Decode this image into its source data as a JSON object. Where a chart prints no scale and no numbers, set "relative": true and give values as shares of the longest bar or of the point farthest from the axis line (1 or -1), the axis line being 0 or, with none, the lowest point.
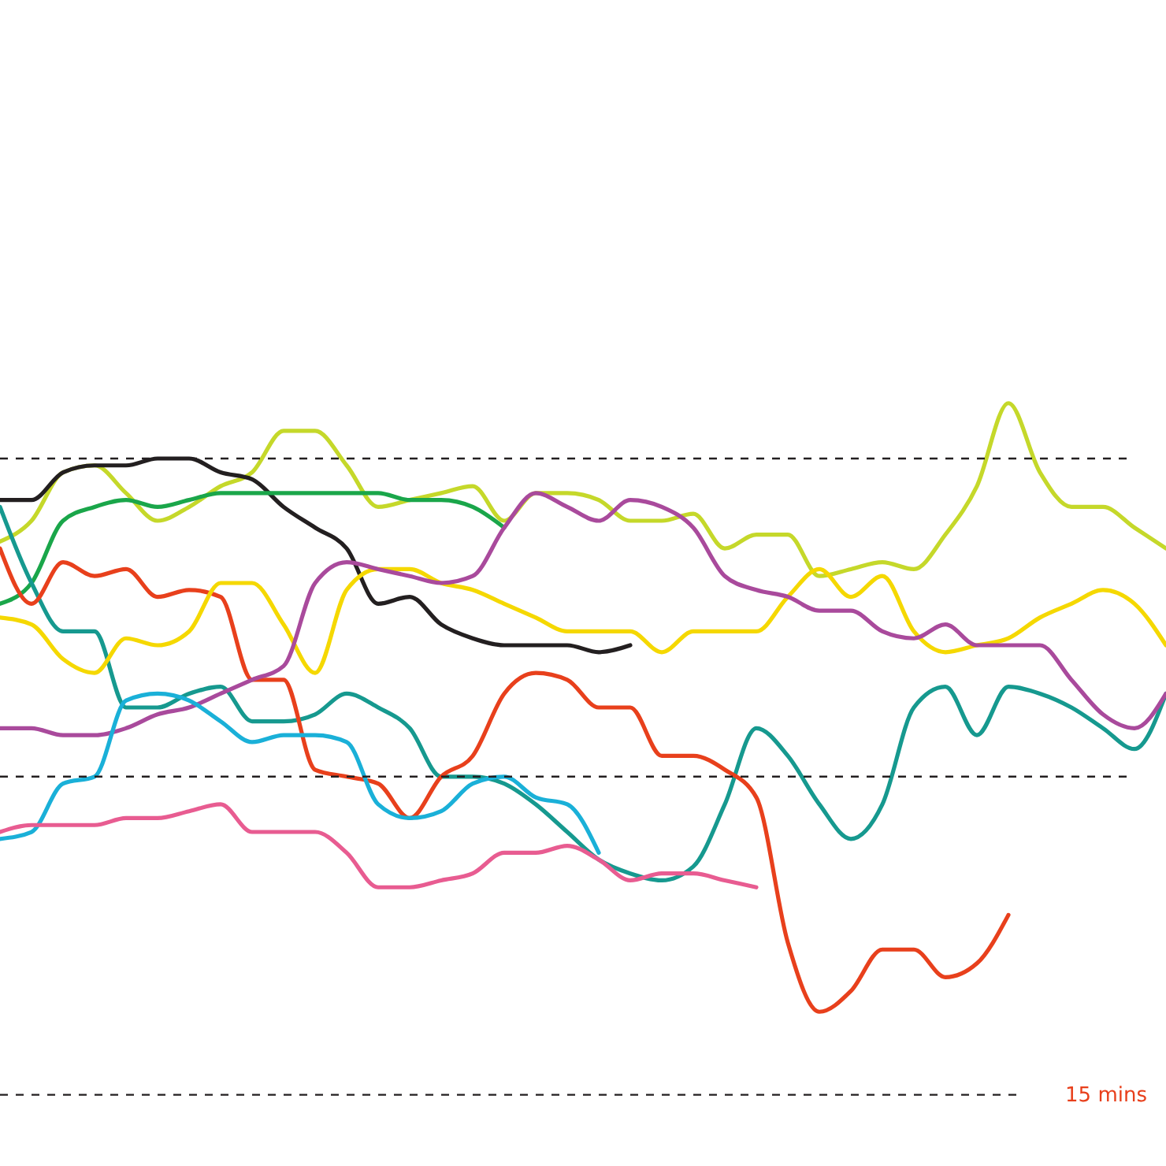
{
  "chart_data": {
    "type": "line",
    "relative": true,
    "categories": [
      null,
      null,
      null,
      null,
      null,
      null,
      null,
      null,
      null,
      null,
      null,
      null,
      null,
      null,
      null,
      null,
      null,
      null,
      null,
      null,
      null,
      null,
      null,
      null,
      null,
      null,
      null,
      null,
      null,
      null,
      null,
      null,
      null,
      null,
      null,
      null,
      null,
      null
    ],
    "series": [
      {
        "color": "#c5d82a",
        "values": [
          0.8,
          0.83,
          0.9,
          0.91,
          0.87,
          0.83,
          0.85,
          0.88,
          0.9,
          0.96,
          0.96,
          0.91,
          0.85,
          0.86,
          0.87,
          0.88,
          0.83,
          0.87,
          0.87,
          0.86,
          0.83,
          0.83,
          0.84,
          0.79,
          0.81,
          0.81,
          0.75,
          0.76,
          0.77,
          0.76,
          0.81,
          0.88,
          1.0,
          0.9,
          0.85,
          0.85,
          0.82,
          0.79
        ]
      },
      {
        "color": "#231f20",
        "values": [
          0.86,
          0.86,
          0.9,
          0.91,
          0.91,
          0.92,
          0.92,
          0.9,
          0.89,
          0.85,
          0.82,
          0.79,
          0.71,
          0.72,
          0.68,
          0.66,
          0.65,
          0.65,
          0.65,
          0.64,
          0.65,
          null,
          null,
          null,
          null,
          null,
          null,
          null,
          null,
          null,
          null,
          null,
          null,
          null,
          null,
          null,
          null,
          null
        ]
      },
      {
        "color": "#1aa64a",
        "values": [
          0.71,
          0.74,
          0.83,
          0.85,
          0.86,
          0.85,
          0.86,
          0.87,
          0.87,
          0.87,
          0.87,
          0.87,
          0.87,
          0.86,
          0.86,
          0.85,
          0.82,
          null,
          null,
          null,
          null,
          null,
          null,
          null,
          null,
          null,
          null,
          null,
          null,
          null,
          null,
          null,
          null,
          null,
          null,
          null,
          null,
          null
        ]
      },
      {
        "color": "#16998f",
        "values": [
          0.85,
          0.74,
          0.67,
          0.67,
          0.56,
          0.56,
          0.58,
          0.59,
          0.54,
          0.54,
          0.55,
          0.58,
          0.56,
          0.53,
          0.46,
          0.46,
          0.45,
          0.42,
          0.38,
          0.34,
          0.32,
          0.31,
          0.33,
          0.42,
          0.53,
          0.49,
          0.42,
          0.37,
          0.42,
          0.56,
          0.59,
          0.52,
          0.59,
          0.58,
          0.56,
          0.53,
          0.5,
          0.58
        ]
      },
      {
        "color": "#e8401c",
        "values": [
          0.79,
          0.71,
          0.77,
          0.75,
          0.76,
          0.72,
          0.73,
          0.72,
          0.6,
          0.6,
          0.47,
          0.46,
          0.45,
          0.4,
          0.46,
          0.49,
          0.58,
          0.61,
          0.6,
          0.56,
          0.56,
          0.49,
          0.49,
          0.47,
          0.43,
          0.22,
          0.12,
          0.15,
          0.21,
          0.21,
          0.17,
          0.19,
          0.26,
          null,
          null,
          null,
          null,
          null
        ]
      },
      {
        "color": "#f5d800",
        "values": [
          0.69,
          0.68,
          0.63,
          0.61,
          0.66,
          0.65,
          0.67,
          0.74,
          0.74,
          0.68,
          0.61,
          0.73,
          0.76,
          0.76,
          0.74,
          0.73,
          0.71,
          0.69,
          0.67,
          0.67,
          0.67,
          0.64,
          0.67,
          0.67,
          0.67,
          0.72,
          0.76,
          0.72,
          0.75,
          0.67,
          0.64,
          0.65,
          0.66,
          0.69,
          0.71,
          0.73,
          0.71,
          0.65
        ]
      },
      {
        "color": "#a94a9c",
        "values": [
          0.53,
          0.53,
          0.52,
          0.52,
          0.53,
          0.55,
          0.56,
          0.58,
          0.6,
          0.62,
          0.74,
          0.77,
          0.76,
          0.75,
          0.74,
          0.75,
          0.82,
          0.87,
          0.85,
          0.83,
          0.86,
          0.85,
          0.82,
          0.75,
          0.73,
          0.72,
          0.7,
          0.7,
          0.67,
          0.66,
          0.68,
          0.65,
          0.65,
          0.65,
          0.6,
          0.55,
          0.53,
          0.58
        ]
      },
      {
        "color": "#1ab0d8",
        "values": [
          0.37,
          0.38,
          0.45,
          0.46,
          0.57,
          0.58,
          0.57,
          0.54,
          0.51,
          0.52,
          0.52,
          0.51,
          0.42,
          0.4,
          0.41,
          0.45,
          0.46,
          0.43,
          0.42,
          0.35,
          null,
          null,
          null,
          null,
          null,
          null,
          null,
          null,
          null,
          null,
          null,
          null,
          null,
          null,
          null,
          null,
          null,
          null
        ]
      },
      {
        "color": "#e85c91",
        "values": [
          0.38,
          0.39,
          0.39,
          0.39,
          0.4,
          0.4,
          0.41,
          0.42,
          0.38,
          0.38,
          0.38,
          0.35,
          0.3,
          0.3,
          0.31,
          0.32,
          0.35,
          0.35,
          0.36,
          0.34,
          0.31,
          0.32,
          0.32,
          0.31,
          0.3,
          null,
          null,
          null,
          null,
          null,
          null,
          null,
          null,
          null,
          null,
          null,
          null,
          null
        ]
      }
    ],
    "ref_lines": [
      {
        "axis": "y",
        "value": 0.92,
        "color": "#231f20",
        "line_style": "dashed"
      },
      {
        "axis": "y",
        "value": 0.46,
        "color": "#231f20",
        "line_style": "dashed"
      },
      {
        "axis": "y",
        "value": 0,
        "label": "15 mins",
        "color": "#231f20",
        "line_style": "dashed"
      }
    ],
    "grid": false,
    "marker": "none",
    "line_style": "solid"
  }
}
